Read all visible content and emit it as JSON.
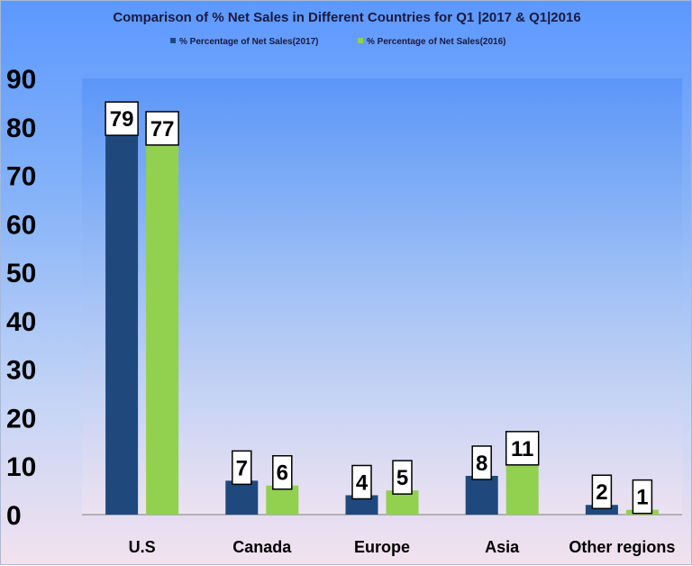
{
  "chart_data": {
    "type": "bar",
    "title": "Comparison of % Net Sales in Different Countries for Q1 |2017 & Q1|2016",
    "categories": [
      "U.S",
      "Canada",
      "Europe",
      "Asia",
      "Other regions"
    ],
    "series": [
      {
        "name": "% Percentage of Net Sales(2017)",
        "values": [
          79,
          7,
          4,
          8,
          2
        ],
        "color": "#1f497d"
      },
      {
        "name": "% Percentage of Net Sales(2016)",
        "values": [
          77,
          6,
          5,
          11,
          1
        ],
        "color": "#92d050"
      }
    ],
    "ylim": [
      0,
      90
    ],
    "yticks": [
      "0",
      "10",
      "20",
      "30",
      "40",
      "50",
      "60",
      "70",
      "80",
      "90"
    ],
    "xlabel": "",
    "ylabel": "",
    "legend": "top",
    "grid": false,
    "data_labels": true
  }
}
